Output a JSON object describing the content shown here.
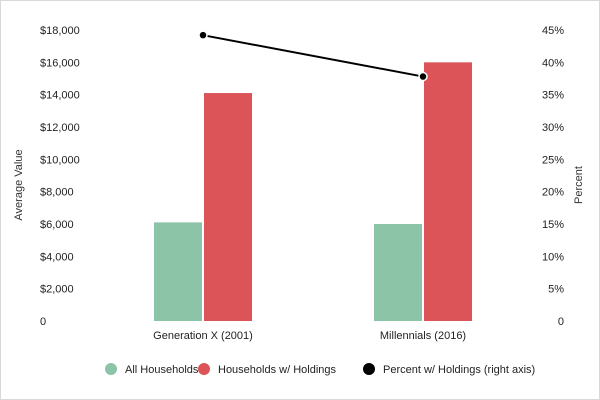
{
  "chart_data": {
    "type": "bar",
    "categories": [
      "Generation X (2001)",
      "Millennials (2016)"
    ],
    "series": [
      {
        "name": "All Households",
        "values": [
          6100,
          6000
        ],
        "color": "#8cc4a8"
      },
      {
        "name": "Households w/ Holdings",
        "values": [
          14100,
          16000
        ],
        "color": "#dc5458"
      }
    ],
    "line_series": {
      "name": "Percent w/ Holdings (right axis)",
      "values": [
        44.2,
        37.8
      ],
      "color": "#000000"
    },
    "ylabel": "Average Value",
    "y2label": "Percent",
    "ylim": [
      0,
      18000
    ],
    "y2lim": [
      0,
      45
    ],
    "yticks": [
      "0",
      "$2,000",
      "$4,000",
      "$6,000",
      "$8,000",
      "$10,000",
      "$12,000",
      "$14,000",
      "$16,000",
      "$18,000"
    ],
    "y2ticks": [
      "0",
      "5%",
      "10%",
      "15%",
      "20%",
      "25%",
      "30%",
      "35%",
      "40%",
      "45%"
    ],
    "grid": false,
    "legend_position": "bottom"
  }
}
